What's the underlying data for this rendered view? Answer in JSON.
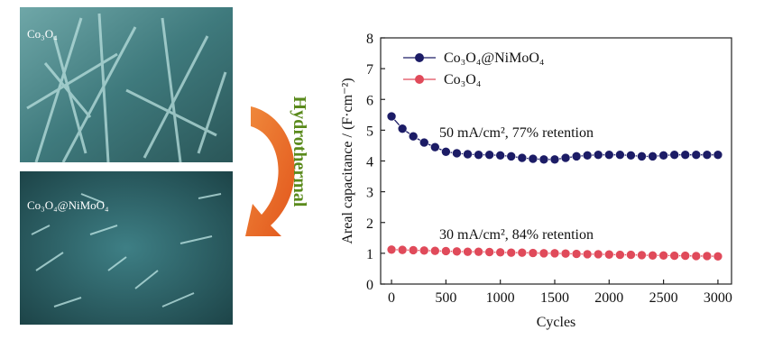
{
  "panels": {
    "top_label": "Co₃O₄",
    "bottom_label": "Co₃O₄@NiMoO₄",
    "process": "Hydrothermal"
  },
  "chart_data": {
    "type": "line",
    "x_label": "Cycles",
    "y_label": "Areal capacitance / (F·cm⁻²)",
    "x": [
      0,
      100,
      200,
      300,
      400,
      500,
      600,
      700,
      800,
      900,
      1000,
      1100,
      1200,
      1300,
      1400,
      1500,
      1600,
      1700,
      1800,
      1900,
      2000,
      2100,
      2200,
      2300,
      2400,
      2500,
      2600,
      2700,
      2800,
      2900,
      3000
    ],
    "series": [
      {
        "name": "Co₃O₄@NiMoO₄",
        "color": "#1c1c66",
        "values": [
          5.45,
          5.05,
          4.8,
          4.6,
          4.45,
          4.3,
          4.25,
          4.22,
          4.2,
          4.2,
          4.18,
          4.15,
          4.1,
          4.07,
          4.05,
          4.05,
          4.1,
          4.15,
          4.18,
          4.2,
          4.2,
          4.2,
          4.18,
          4.15,
          4.15,
          4.18,
          4.2,
          4.2,
          4.2,
          4.2,
          4.2
        ]
      },
      {
        "name": "Co₃O₄",
        "color": "#e04a5a",
        "values": [
          1.12,
          1.11,
          1.1,
          1.09,
          1.08,
          1.07,
          1.06,
          1.05,
          1.05,
          1.04,
          1.03,
          1.02,
          1.02,
          1.01,
          1.0,
          1.0,
          0.99,
          0.98,
          0.97,
          0.97,
          0.96,
          0.95,
          0.95,
          0.94,
          0.93,
          0.93,
          0.92,
          0.92,
          0.91,
          0.91,
          0.9
        ]
      }
    ],
    "annotations": [
      "50 mA/cm², 77% retention",
      "30 mA/cm², 84% retention"
    ],
    "xlim": [
      -100,
      3125
    ],
    "ylim": [
      0,
      8
    ],
    "xticks": [
      0,
      500,
      1000,
      1500,
      2000,
      2500,
      3000
    ],
    "yticks": [
      0,
      1,
      2,
      3,
      4,
      5,
      6,
      7,
      8
    ],
    "legend": "upper left"
  }
}
